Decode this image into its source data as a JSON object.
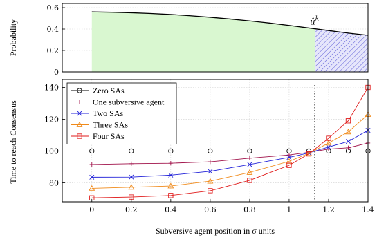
{
  "chart_data": [
    {
      "type": "area",
      "ylabel": "Probability",
      "ylim": [
        0,
        0.6
      ],
      "yticks": [
        0,
        0.2,
        0.4,
        0.6
      ],
      "xlim": [
        -0.15,
        1.4
      ],
      "annotation": "û",
      "annotation_sup": "k",
      "threshold_x": 1.13,
      "colors": {
        "line": "#000000",
        "fill_green": "#d9f7d0",
        "hatch": "#5a5ad6"
      },
      "curve": {
        "x": [
          0,
          0.1,
          0.2,
          0.3,
          0.4,
          0.5,
          0.6,
          0.7,
          0.8,
          0.9,
          1.0,
          1.1,
          1.2,
          1.3,
          1.4
        ],
        "y": [
          0.56,
          0.557,
          0.552,
          0.545,
          0.536,
          0.524,
          0.51,
          0.494,
          0.476,
          0.456,
          0.434,
          0.41,
          0.386,
          0.362,
          0.342
        ]
      }
    },
    {
      "type": "line",
      "xlabel": "Subversive agent position in σ units",
      "ylabel": "Time to reach Consensus",
      "xlim": [
        -0.15,
        1.4
      ],
      "ylim": [
        68,
        145
      ],
      "xticks": [
        0,
        0.2,
        0.4,
        0.6,
        0.8,
        1,
        1.2,
        1.4
      ],
      "yticks": [
        80,
        100,
        120,
        140
      ],
      "vline_x": 1.13,
      "legend_position": "top-left",
      "x": [
        0,
        0.2,
        0.4,
        0.6,
        0.8,
        1.0,
        1.1,
        1.2,
        1.3,
        1.4
      ],
      "series": [
        {
          "name": "Zero SAs",
          "color": "#000000",
          "marker": "circle",
          "values": [
            100,
            100,
            100,
            100,
            100,
            100,
            100,
            100,
            100,
            100
          ]
        },
        {
          "name": "One subversive agent",
          "color": "#a0124a",
          "marker": "plus",
          "values": [
            91.5,
            92,
            92.3,
            93.2,
            95.5,
            97.5,
            99.2,
            101.2,
            102,
            105
          ]
        },
        {
          "name": "Two SAs",
          "color": "#2020d8",
          "marker": "x",
          "values": [
            83.5,
            83.6,
            84.8,
            87.2,
            91.5,
            96,
            98.8,
            102.5,
            106,
            113
          ]
        },
        {
          "name": "Three SAs",
          "color": "#f08a1a",
          "marker": "triangle",
          "values": [
            76.5,
            77.2,
            78,
            81,
            86.5,
            93.5,
            98.5,
            105,
            112,
            123
          ]
        },
        {
          "name": "Four SAs",
          "color": "#e01b1b",
          "marker": "square",
          "values": [
            70.5,
            71,
            72,
            75,
            81.5,
            91,
            98.2,
            108,
            119,
            140
          ]
        }
      ]
    }
  ]
}
